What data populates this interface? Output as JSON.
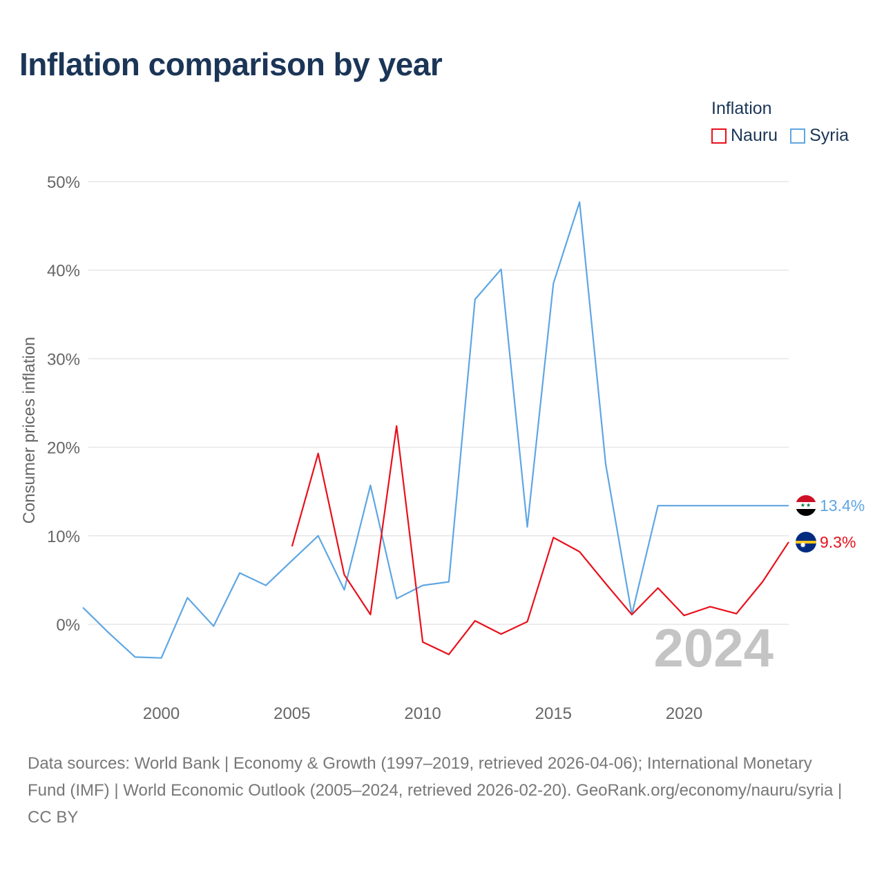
{
  "title": "Inflation comparison by year",
  "legend": {
    "title": "Inflation",
    "items": [
      {
        "label": "Nauru",
        "color": "#e8101a"
      },
      {
        "label": "Syria",
        "color": "#5ea6e3"
      }
    ]
  },
  "chart_data": {
    "type": "line",
    "title": "Inflation comparison by year",
    "xlabel": "",
    "ylabel": "Consumer prices inflation",
    "xlim": [
      1997,
      2024
    ],
    "ylim": [
      -8,
      50
    ],
    "x_ticks": [
      2000,
      2005,
      2010,
      2015,
      2020
    ],
    "x_tick_labels": [
      "2000",
      "2005",
      "2010",
      "2015",
      "2020"
    ],
    "y_ticks": [
      0,
      10,
      20,
      30,
      40,
      50
    ],
    "y_tick_labels": [
      "0%",
      "10%",
      "20%",
      "30%",
      "40%",
      "50%"
    ],
    "grid": true,
    "legend_position": "top-right",
    "year_watermark": "2024",
    "series": [
      {
        "name": "Nauru",
        "color": "#e8101a",
        "end_label": "9.3%",
        "end_flag": "nauru-flag",
        "points": [
          {
            "x": 2005,
            "y": 8.8
          },
          {
            "x": 2006,
            "y": 19.3
          },
          {
            "x": 2007,
            "y": 5.6
          },
          {
            "x": 2008,
            "y": 1.1
          },
          {
            "x": 2009,
            "y": 22.4
          },
          {
            "x": 2010,
            "y": -2.0
          },
          {
            "x": 2011,
            "y": -3.4
          },
          {
            "x": 2012,
            "y": 0.4
          },
          {
            "x": 2013,
            "y": -1.1
          },
          {
            "x": 2014,
            "y": 0.3
          },
          {
            "x": 2015,
            "y": 9.8
          },
          {
            "x": 2016,
            "y": 8.2
          },
          {
            "x": 2017,
            "y": 4.6
          },
          {
            "x": 2018,
            "y": 1.1
          },
          {
            "x": 2019,
            "y": 4.1
          },
          {
            "x": 2020,
            "y": 1.0
          },
          {
            "x": 2021,
            "y": 2.0
          },
          {
            "x": 2022,
            "y": 1.2
          },
          {
            "x": 2023,
            "y": 4.8
          },
          {
            "x": 2024,
            "y": 9.3
          }
        ]
      },
      {
        "name": "Syria",
        "color": "#5ea6e3",
        "end_label": "13.4%",
        "end_flag": "syria-flag",
        "points": [
          {
            "x": 1997,
            "y": 1.9
          },
          {
            "x": 1998,
            "y": -1.0
          },
          {
            "x": 1999,
            "y": -3.7
          },
          {
            "x": 2000,
            "y": -3.8
          },
          {
            "x": 2001,
            "y": 3.0
          },
          {
            "x": 2002,
            "y": -0.2
          },
          {
            "x": 2003,
            "y": 5.8
          },
          {
            "x": 2004,
            "y": 4.4
          },
          {
            "x": 2005,
            "y": 7.2
          },
          {
            "x": 2006,
            "y": 10.0
          },
          {
            "x": 2007,
            "y": 3.9
          },
          {
            "x": 2008,
            "y": 15.7
          },
          {
            "x": 2009,
            "y": 2.9
          },
          {
            "x": 2010,
            "y": 4.4
          },
          {
            "x": 2011,
            "y": 4.8
          },
          {
            "x": 2012,
            "y": 36.7
          },
          {
            "x": 2013,
            "y": 40.1
          },
          {
            "x": 2014,
            "y": 11.0
          },
          {
            "x": 2015,
            "y": 38.5
          },
          {
            "x": 2016,
            "y": 47.7
          },
          {
            "x": 2017,
            "y": 18.1
          },
          {
            "x": 2018,
            "y": 1.1
          },
          {
            "x": 2019,
            "y": 13.4
          },
          {
            "x": 2020,
            "y": 13.4
          },
          {
            "x": 2021,
            "y": 13.4
          },
          {
            "x": 2022,
            "y": 13.4
          },
          {
            "x": 2023,
            "y": 13.4
          },
          {
            "x": 2024,
            "y": 13.4
          }
        ]
      }
    ]
  },
  "sources": "Data sources: World Bank | Economy & Growth (1997–2019, retrieved 2026-04-06); International Monetary Fund (IMF) | World Economic Outlook (2005–2024, retrieved 2026-02-20). GeoRank.org/economy/nauru/syria | CC BY"
}
